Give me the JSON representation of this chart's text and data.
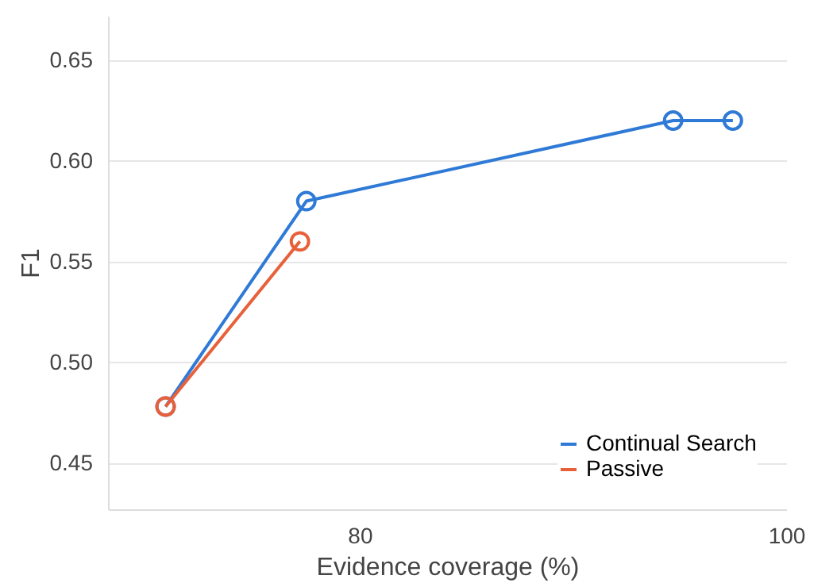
{
  "chart_data": {
    "type": "line",
    "xlabel": "Evidence coverage (%)",
    "ylabel": "F1",
    "xlim": [
      68.2,
      100
    ],
    "xticks": [
      80,
      100
    ],
    "ylim": [
      0.427,
      0.672
    ],
    "yticks": [
      0.45,
      {
        "value": 0.5,
        "label": "0.50"
      },
      0.55,
      {
        "value": 0.6,
        "label": "0.60"
      },
      0.65
    ],
    "grid": "y",
    "legend": "bottom right",
    "marker": "circle",
    "line_style": "solid",
    "series": [
      {
        "name": "Continual Search",
        "color": "#2f7ad6",
        "x": [
          70.9,
          77.5,
          94.7,
          97.5
        ],
        "values": [
          0.478,
          0.58,
          0.62,
          0.62
        ]
      },
      {
        "name": "Passive",
        "color": "#e8603a",
        "x": [
          70.9,
          77.2
        ],
        "values": [
          0.478,
          0.56
        ]
      }
    ]
  }
}
